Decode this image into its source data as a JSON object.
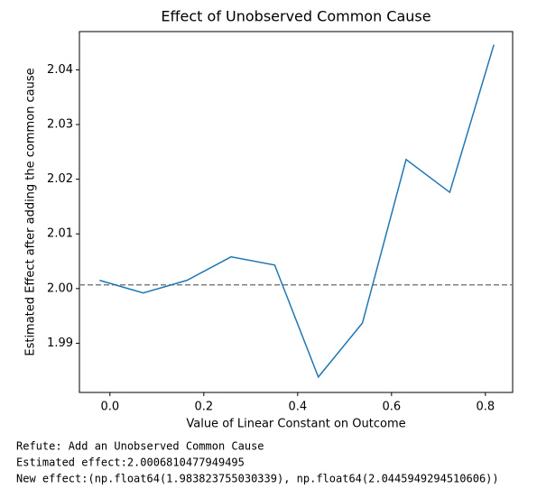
{
  "chart_data": {
    "type": "line",
    "title": "Effect of Unobserved Common Cause",
    "xlabel": "Value of Linear Constant on Outcome",
    "ylabel": "Estimated Effect after adding the common cause",
    "x": [
      -0.022,
      0.071,
      0.164,
      0.258,
      0.351,
      0.444,
      0.538,
      0.631,
      0.724,
      0.818
    ],
    "values": [
      2.0015,
      1.9992,
      2.0015,
      2.0058,
      2.0043,
      1.983823755030339,
      1.9937,
      2.0236,
      2.0176,
      2.0445949294510606
    ],
    "color": "#1f77b4",
    "reference_line": 2.0006810477949495,
    "reference_color": "#808080",
    "xlim": [
      -0.065,
      0.858
    ],
    "ylim": [
      1.981,
      2.047
    ],
    "xticks": [
      {
        "value": 0,
        "label": "0.0"
      },
      0.2,
      0.4,
      0.6,
      0.8
    ],
    "yticks": [
      1.99,
      {
        "value": 2,
        "label": "2.00"
      },
      2.01,
      2.02,
      2.03,
      2.04
    ]
  },
  "output_lines": [
    "Refute: Add an Unobserved Common Cause",
    "Estimated effect:2.0006810477949495",
    "New effect:(np.float64(1.983823755030339), np.float64(2.0445949294510606))"
  ]
}
